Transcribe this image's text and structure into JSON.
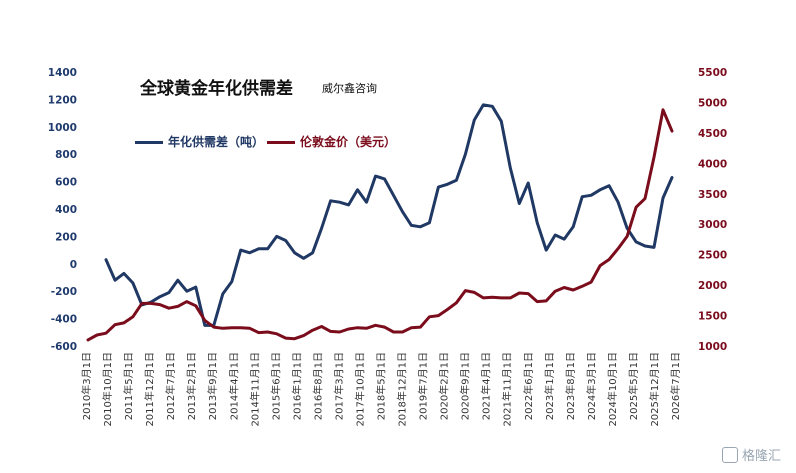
{
  "chart_data": {
    "type": "line",
    "title": "全球黄金年化供需差",
    "subtitle": "威尔鑫咨询",
    "y_left": {
      "min": -600,
      "max": 1400,
      "ticks": [
        1400,
        1200,
        1000,
        800,
        600,
        400,
        200,
        0,
        -200,
        -400,
        -600
      ]
    },
    "y_right": {
      "min": 1000,
      "max": 5500,
      "ticks": [
        5500,
        5000,
        4500,
        4000,
        3500,
        3000,
        2500,
        2000,
        1500,
        1000
      ]
    },
    "x_labels": [
      "2010年3月1日",
      "2010年10月1日",
      "2011年5月1日",
      "2011年12月1日",
      "2012年7月1日",
      "2013年2月1日",
      "2013年9月1日",
      "2014年4月1日",
      "2014年11月1日",
      "2015年6月1日",
      "2016年1月1日",
      "2016年8月1日",
      "2017年3月1日",
      "2017年10月1日",
      "2018年5月1日",
      "2018年12月1日",
      "2019年7月1日",
      "2020年2月1日",
      "2020年9月1日",
      "2021年4月1日",
      "2021年11月1日",
      "2022年6月1日",
      "2023年1月1日",
      "2023年8月1日",
      "2024年3月1日",
      "2024年10月1日",
      "2025年5月1日",
      "2025年12月1日",
      "2026年7月1日"
    ],
    "legend_position": "top-left",
    "grid": false,
    "series": [
      {
        "name": "年化供需差（吨）",
        "axis": "left",
        "color": "#203864",
        "values": [
          null,
          null,
          30,
          -120,
          -70,
          -140,
          -300,
          -280,
          -240,
          -210,
          -120,
          -200,
          -170,
          -450,
          -450,
          -220,
          -130,
          100,
          80,
          110,
          110,
          200,
          170,
          80,
          40,
          80,
          260,
          460,
          450,
          430,
          540,
          450,
          640,
          620,
          500,
          380,
          280,
          270,
          300,
          560,
          580,
          610,
          800,
          1050,
          1160,
          1150,
          1040,
          700,
          440,
          590,
          300,
          100,
          210,
          180,
          270,
          490,
          500,
          540,
          570,
          450,
          260,
          160,
          130,
          120,
          480,
          630
        ]
      },
      {
        "name": "伦敦金价（美元）",
        "axis": "right",
        "color": "#7a0c1c",
        "values": [
          1100,
          1180,
          1210,
          1350,
          1380,
          1480,
          1700,
          1700,
          1680,
          1620,
          1650,
          1730,
          1660,
          1420,
          1310,
          1290,
          1300,
          1300,
          1290,
          1220,
          1230,
          1200,
          1130,
          1120,
          1170,
          1260,
          1320,
          1240,
          1230,
          1280,
          1300,
          1290,
          1340,
          1310,
          1230,
          1230,
          1300,
          1310,
          1480,
          1500,
          1600,
          1710,
          1910,
          1880,
          1790,
          1800,
          1790,
          1790,
          1870,
          1860,
          1730,
          1740,
          1900,
          1960,
          1920,
          1980,
          2050,
          2320,
          2420,
          2600,
          2800,
          3280,
          3420,
          4100,
          4880,
          4530
        ]
      }
    ]
  },
  "watermark": {
    "text": "格隆汇"
  }
}
